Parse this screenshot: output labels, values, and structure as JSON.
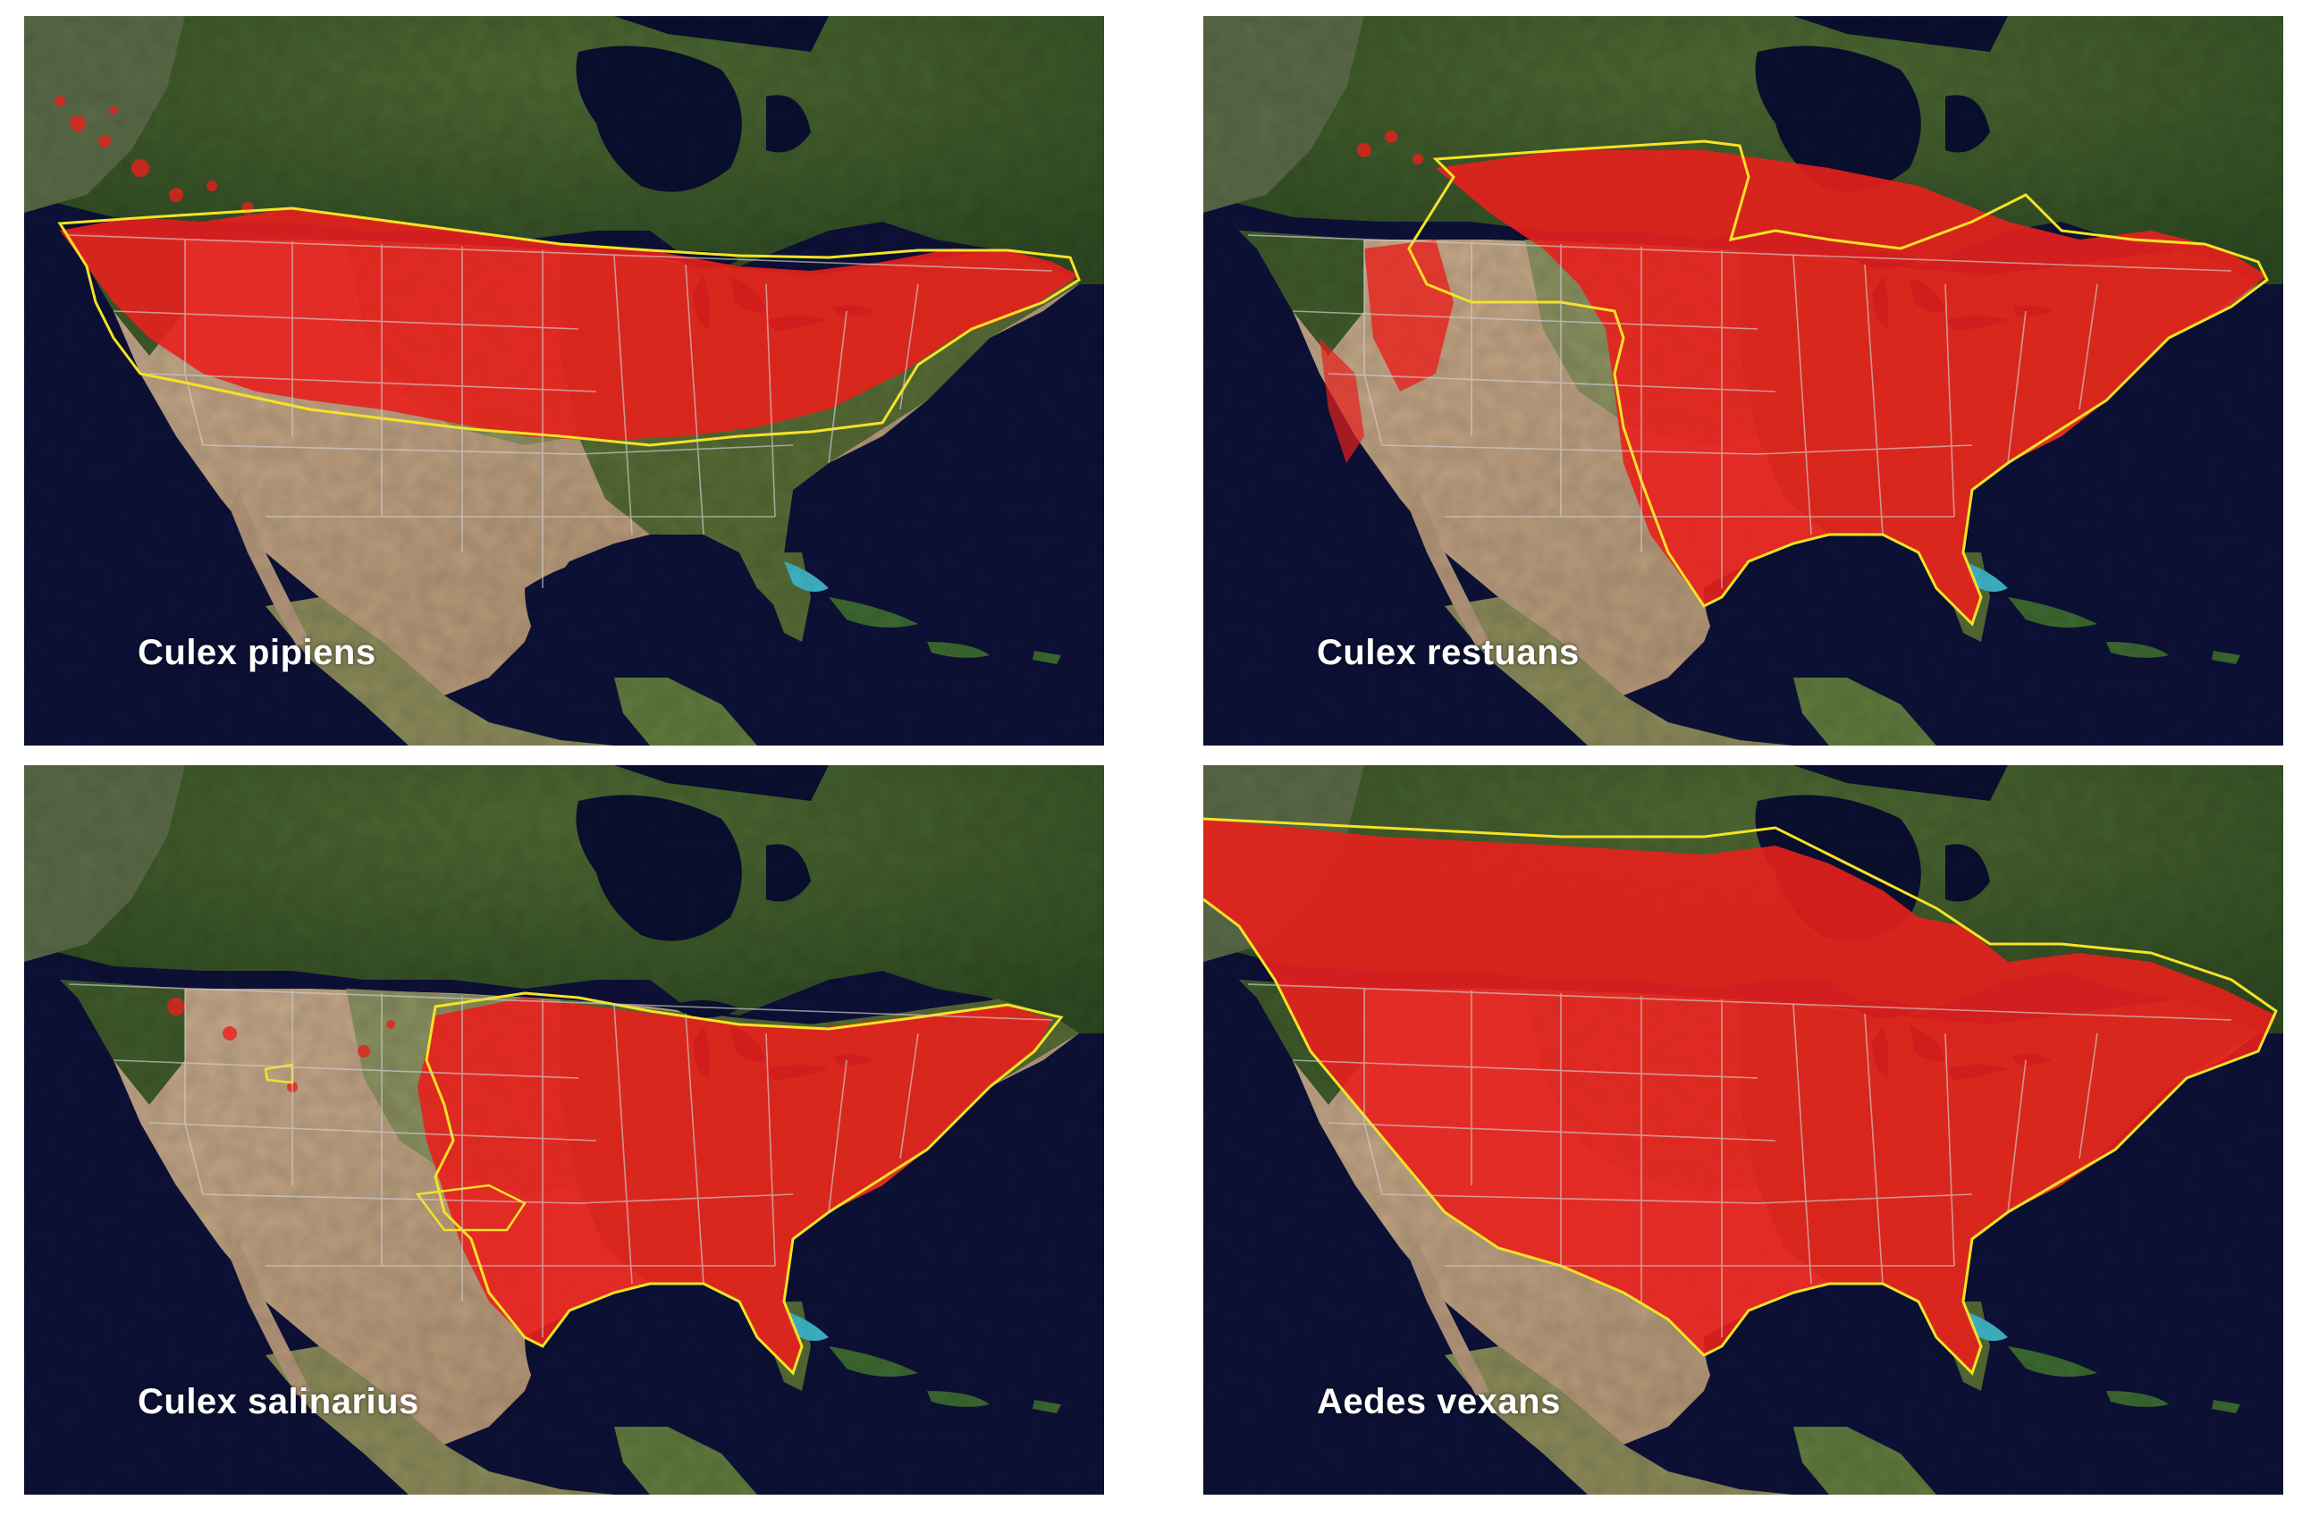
{
  "panels": [
    {
      "id": "culex-pipiens",
      "label": "Culex pipiens"
    },
    {
      "id": "culex-restuans",
      "label": "Culex restuans"
    },
    {
      "id": "culex-salinarius",
      "label": "Culex salinarius"
    },
    {
      "id": "aedes-vexans",
      "label": "Aedes vexans"
    }
  ],
  "colors": {
    "ocean": "#0d1238",
    "land_north": "#3c5a2a",
    "land_forest": "#2f4d23",
    "land_desert": "#c4a78a",
    "land_prairie": "#7f8e58",
    "tundra": "#6e7a55",
    "water_lakes": "#0a1030",
    "shallow_water": "#3fb7c9",
    "distribution": "#e8201c",
    "range_outline": "#f4e325",
    "state_borders": "#c9c9c9",
    "label_text": "#ffffff"
  }
}
